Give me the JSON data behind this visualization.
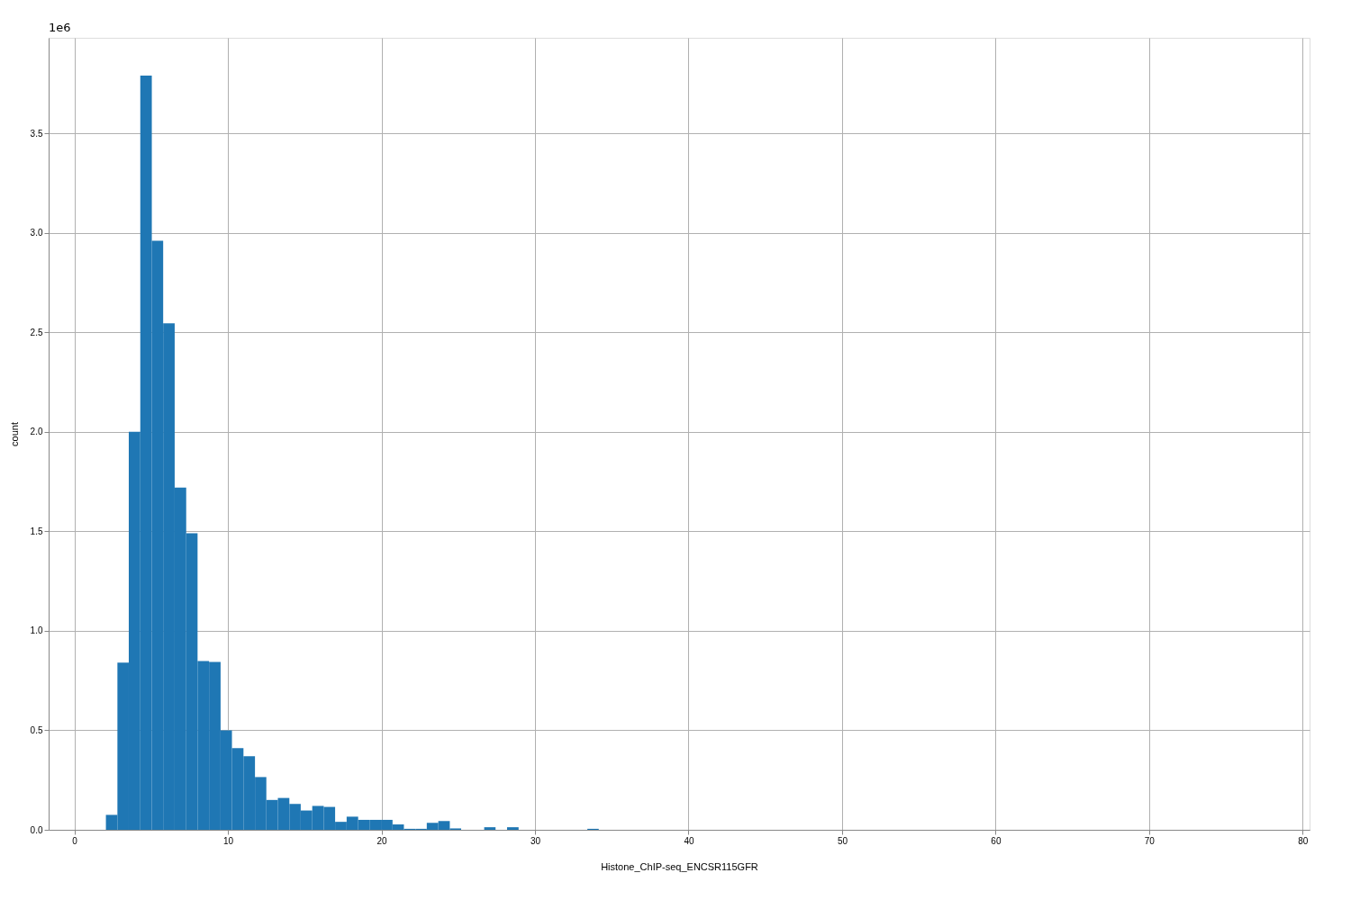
{
  "chart_data": {
    "type": "histogram",
    "xlabel": "Histone_ChIP-seq_ENCSR115GFR",
    "ylabel": "count",
    "color": "#1f77b4",
    "bins": [
      2.05,
      2.8,
      3.54,
      4.29,
      5.04,
      5.78,
      6.53,
      7.28,
      8.02,
      8.77,
      9.52,
      10.26,
      11.01,
      11.76,
      12.5,
      13.25,
      14.0,
      14.74,
      15.49,
      16.24,
      16.98,
      17.73,
      18.48,
      19.22,
      19.97,
      20.72,
      21.46,
      22.21,
      22.95,
      23.7,
      24.45,
      25.19,
      25.94,
      26.69,
      27.43,
      28.18,
      28.93,
      29.67,
      30.42,
      31.17,
      31.91,
      32.66,
      33.41,
      34.15,
      34.9,
      35.65,
      36.39,
      37.14,
      37.89,
      38.63,
      39.38,
      40.13,
      40.87,
      41.62,
      42.37,
      43.11,
      43.86,
      44.61,
      45.35,
      46.1,
      46.85,
      47.59,
      48.34,
      49.09,
      49.83,
      50.58,
      51.33,
      52.07,
      52.82,
      53.57,
      54.31,
      55.06,
      55.81,
      56.55,
      57.3,
      58.05,
      58.79,
      59.54,
      60.29,
      61.03,
      61.78,
      62.53,
      63.27,
      64.02,
      64.77,
      65.51,
      66.26,
      67.01,
      67.75,
      68.5,
      69.25,
      69.99,
      70.74,
      71.49,
      72.23,
      72.98,
      73.73,
      74.47,
      75.22,
      75.97,
      76.71
    ],
    "values": [
      0.075,
      0.84,
      2.0,
      3.79,
      2.96,
      2.545,
      1.72,
      1.49,
      0.848,
      0.843,
      0.5,
      0.41,
      0.37,
      0.265,
      0.15,
      0.16,
      0.13,
      0.097,
      0.12,
      0.115,
      0.04,
      0.066,
      0.05,
      0.05,
      0.05,
      0.027,
      0.005,
      0.005,
      0.035,
      0.044,
      0.007,
      0,
      0,
      0.013,
      0,
      0.013,
      0,
      0,
      0,
      0,
      0,
      0,
      0.005,
      0,
      0,
      0,
      0,
      0,
      0,
      0,
      0,
      0,
      0,
      0,
      0,
      0,
      0,
      0,
      0,
      0,
      0,
      0,
      0,
      0,
      0,
      0,
      0,
      0,
      0,
      0,
      0,
      0,
      0,
      0,
      0,
      0,
      0,
      0,
      0,
      0,
      0,
      0,
      0,
      0,
      0,
      0,
      0,
      0,
      0,
      0,
      0,
      0,
      0,
      0,
      0,
      0,
      0,
      0,
      0,
      0
    ],
    "xlim": [
      -1.68,
      80.45
    ],
    "xticks": [
      0,
      10,
      20,
      30,
      40,
      50,
      60,
      70,
      80
    ],
    "ylim": [
      0,
      3.98
    ],
    "yticks": [
      {
        "value": 0,
        "label": "0.0"
      },
      0.5,
      {
        "value": 1,
        "label": "1.0"
      },
      1.5,
      {
        "value": 2,
        "label": "2.0"
      },
      2.5,
      {
        "value": 3,
        "label": "3.0"
      },
      3.5
    ],
    "annotations": [
      "1e6"
    ],
    "grid": true
  }
}
